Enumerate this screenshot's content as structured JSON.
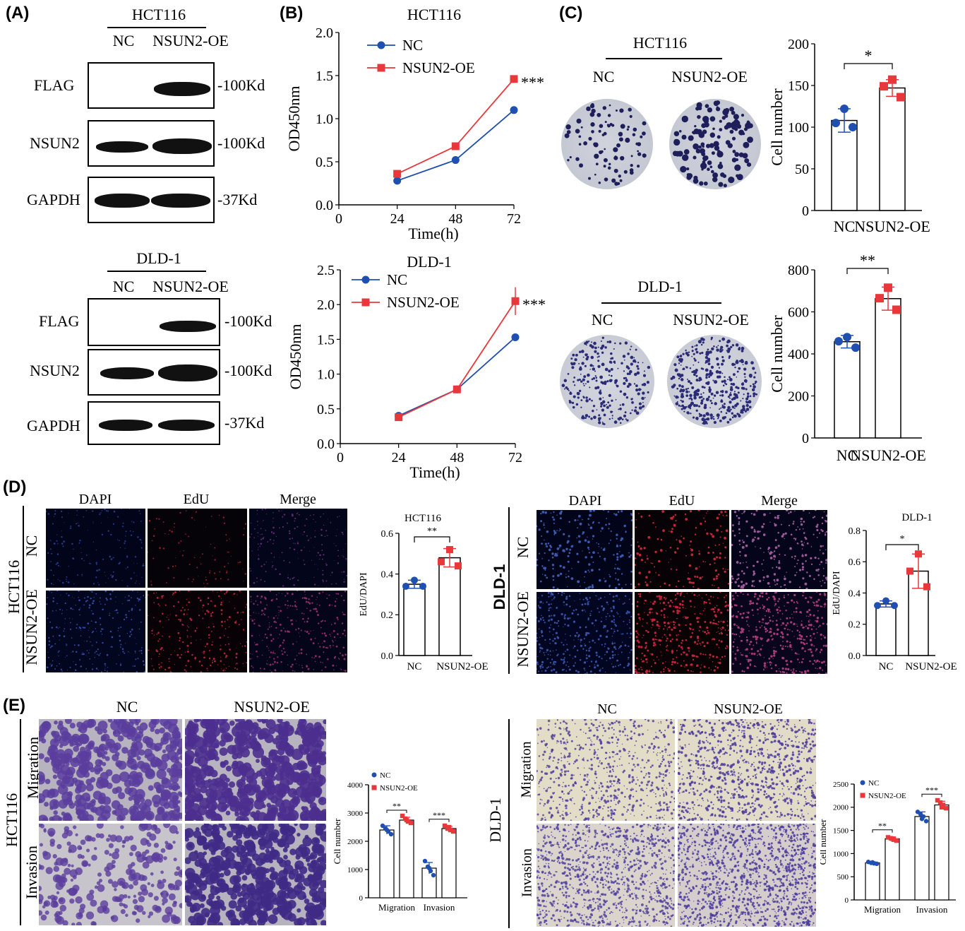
{
  "panel_labels": {
    "A": "(A)",
    "B": "(B)",
    "C": "(C)",
    "D": "(D)",
    "E": "(E)"
  },
  "panelA": {
    "top": {
      "cell_line": "HCT116",
      "groups": [
        "NC",
        "NSUN2-OE"
      ],
      "rows": [
        {
          "label": "FLAG",
          "size": "-100Kd"
        },
        {
          "label": "NSUN2",
          "size": "-100Kd"
        },
        {
          "label": "GAPDH",
          "size": "-37Kd"
        }
      ]
    },
    "bottom": {
      "cell_line": "DLD-1",
      "groups": [
        "NC",
        "NSUN2-OE"
      ],
      "rows": [
        {
          "label": "FLAG",
          "size": "-100Kd"
        },
        {
          "label": "NSUN2",
          "size": "-100Kd"
        },
        {
          "label": "GAPDH",
          "size": "-37Kd"
        }
      ]
    }
  },
  "panelC": {
    "top": {
      "cell_line": "HCT116",
      "groups": [
        "NC",
        "NSUN2-OE"
      ]
    },
    "bottom": {
      "cell_line": "DLD-1",
      "groups": [
        "NC",
        "NSUN2-OE"
      ]
    }
  },
  "panelD": {
    "left": {
      "cell_line": "HCT116",
      "columns": [
        "DAPI",
        "EdU",
        "Merge"
      ],
      "rows": [
        "NC",
        "NSUN2-OE"
      ]
    },
    "right": {
      "cell_line": "DLD-1",
      "columns": [
        "DAPI",
        "EdU",
        "Merge"
      ],
      "rows": [
        "NC",
        "NSUN2-OE"
      ]
    }
  },
  "panelE": {
    "left": {
      "cell_line": "HCT116",
      "columns": [
        "NC",
        "NSUN2-OE"
      ],
      "rows": [
        "Migration",
        "Invasion"
      ]
    },
    "right": {
      "cell_line": "DLD-1",
      "columns": [
        "NC",
        "NSUN2-OE"
      ],
      "rows": [
        "Migration",
        "Invasion"
      ]
    }
  },
  "colors": {
    "nc": "#1f4fb0",
    "oe": "#e8383b",
    "crystal_violet": "#5b3d9e"
  },
  "chart_data": [
    {
      "id": "B1",
      "type": "line",
      "title": "HCT116",
      "xlabel": "Time(h)",
      "ylabel": "OD450nm",
      "x": [
        24,
        48,
        72
      ],
      "xlim": [
        0,
        72
      ],
      "xticks": [
        0,
        24,
        48,
        72
      ],
      "ylim": [
        0,
        2.0
      ],
      "yticks": [
        "0.0",
        "0.5",
        "1.0",
        "1.5",
        "2.0"
      ],
      "series": [
        {
          "name": "NC",
          "values": [
            0.28,
            0.52,
            1.1
          ],
          "err": [
            0.02,
            0.02,
            0.02
          ]
        },
        {
          "name": "NSUN2-OE",
          "values": [
            0.36,
            0.68,
            1.46
          ],
          "err": [
            0.02,
            0.02,
            0.04
          ]
        }
      ],
      "annotations": [
        "***"
      ],
      "legend": "top-left"
    },
    {
      "id": "B2",
      "type": "line",
      "title": "DLD-1",
      "xlabel": "Time(h)",
      "ylabel": "OD450nm",
      "x": [
        24,
        48,
        72
      ],
      "xlim": [
        0,
        72
      ],
      "xticks": [
        0,
        24,
        48,
        72
      ],
      "ylim": [
        0,
        2.5
      ],
      "yticks": [
        "0.0",
        "0.5",
        "1.0",
        "1.5",
        "2.0",
        "2.5"
      ],
      "series": [
        {
          "name": "NC",
          "values": [
            0.4,
            0.78,
            1.53
          ],
          "err": [
            0.02,
            0.03,
            0.02
          ]
        },
        {
          "name": "NSUN2-OE",
          "values": [
            0.38,
            0.78,
            2.05
          ],
          "err": [
            0.02,
            0.05,
            0.2
          ]
        }
      ],
      "annotations": [
        "***"
      ],
      "legend": "top-left"
    },
    {
      "id": "C1",
      "type": "bar",
      "ylabel": "Cell number",
      "categories": [
        "NC",
        "NSUN2-OE"
      ],
      "values": [
        108,
        147
      ],
      "err": [
        14,
        10
      ],
      "ylim": [
        0,
        200
      ],
      "yticks": [
        0,
        50,
        100,
        150,
        200
      ],
      "points": [
        [
          122,
          105,
          100
        ],
        [
          157,
          149,
          136
        ]
      ],
      "annotations": [
        "*"
      ]
    },
    {
      "id": "C2",
      "type": "bar",
      "ylabel": "Cell number",
      "categories": [
        "NC",
        "NSUN2-OE"
      ],
      "values": [
        458,
        663
      ],
      "err": [
        30,
        55
      ],
      "ylim": [
        0,
        800
      ],
      "yticks": [
        0,
        200,
        400,
        600,
        800
      ],
      "points": [
        [
          480,
          460,
          430
        ],
        [
          715,
          665,
          610
        ]
      ],
      "annotations": [
        "**"
      ]
    },
    {
      "id": "D1",
      "type": "bar",
      "title": "HCT116",
      "ylabel": "EdU/DAPI",
      "categories": [
        "NC",
        "NSUN2-OE"
      ],
      "values": [
        0.35,
        0.48
      ],
      "err": [
        0.02,
        0.045
      ],
      "ylim": [
        0,
        0.6
      ],
      "yticks": [
        "0.0",
        "0.2",
        "0.4",
        "0.6"
      ],
      "points": [
        [
          0.37,
          0.34,
          0.34
        ],
        [
          0.52,
          0.46,
          0.44
        ]
      ],
      "annotations": [
        "**"
      ]
    },
    {
      "id": "D2",
      "type": "bar",
      "title": "DLD-1",
      "ylabel": "EdU/DAPI",
      "categories": [
        "NC",
        "NSUN2-OE"
      ],
      "values": [
        0.33,
        0.54
      ],
      "err": [
        0.02,
        0.11
      ],
      "ylim": [
        0,
        0.8
      ],
      "yticks": [
        "0.0",
        "0.2",
        "0.4",
        "0.6",
        "0.8"
      ],
      "points": [
        [
          0.35,
          0.32,
          0.32
        ],
        [
          0.65,
          0.54,
          0.44
        ]
      ],
      "annotations": [
        "*"
      ]
    },
    {
      "id": "E1",
      "type": "bar",
      "ylabel": "Cell number",
      "categories": [
        "Migration",
        "Invasion"
      ],
      "ylim": [
        0,
        4000
      ],
      "yticks": [
        0,
        1000,
        2000,
        3000,
        4000
      ],
      "series": [
        {
          "name": "NC",
          "values": [
            2400,
            1050
          ],
          "err": [
            150,
            200
          ],
          "points": [
            [
              2550,
              2450,
              2350,
              2250,
              2400
            ],
            [
              1300,
              1100,
              950,
              800,
              1050
            ]
          ]
        },
        {
          "name": "NSUN2-OE",
          "values": [
            2750,
            2450
          ],
          "err": [
            100,
            80
          ],
          "points": [
            [
              2900,
              2800,
              2700,
              2650,
              2750
            ],
            [
              2550,
              2450,
              2400,
              2350,
              2500
            ]
          ]
        }
      ],
      "annotations": [
        "**",
        "***"
      ],
      "legend": "top-left"
    },
    {
      "id": "E2",
      "type": "bar",
      "ylabel": "Cell number",
      "categories": [
        "Migration",
        "Invasion"
      ],
      "ylim": [
        0,
        2500
      ],
      "yticks": [
        0,
        500,
        1000,
        1500,
        2000,
        2500
      ],
      "series": [
        {
          "name": "NC",
          "values": [
            800,
            1800
          ],
          "err": [
            20,
            100
          ],
          "points": [
            [
              820,
              800,
              790,
              780,
              810
            ],
            [
              1900,
              1850,
              1800,
              1700,
              1750
            ]
          ]
        },
        {
          "name": "NSUN2-OE",
          "values": [
            1320,
            2050
          ],
          "err": [
            40,
            80
          ],
          "points": [
            [
              1350,
              1330,
              1300,
              1280,
              1320
            ],
            [
              2150,
              2100,
              2050,
              1980,
              2000
            ]
          ]
        }
      ],
      "annotations": [
        "**",
        "***"
      ],
      "legend": "top-left"
    }
  ]
}
